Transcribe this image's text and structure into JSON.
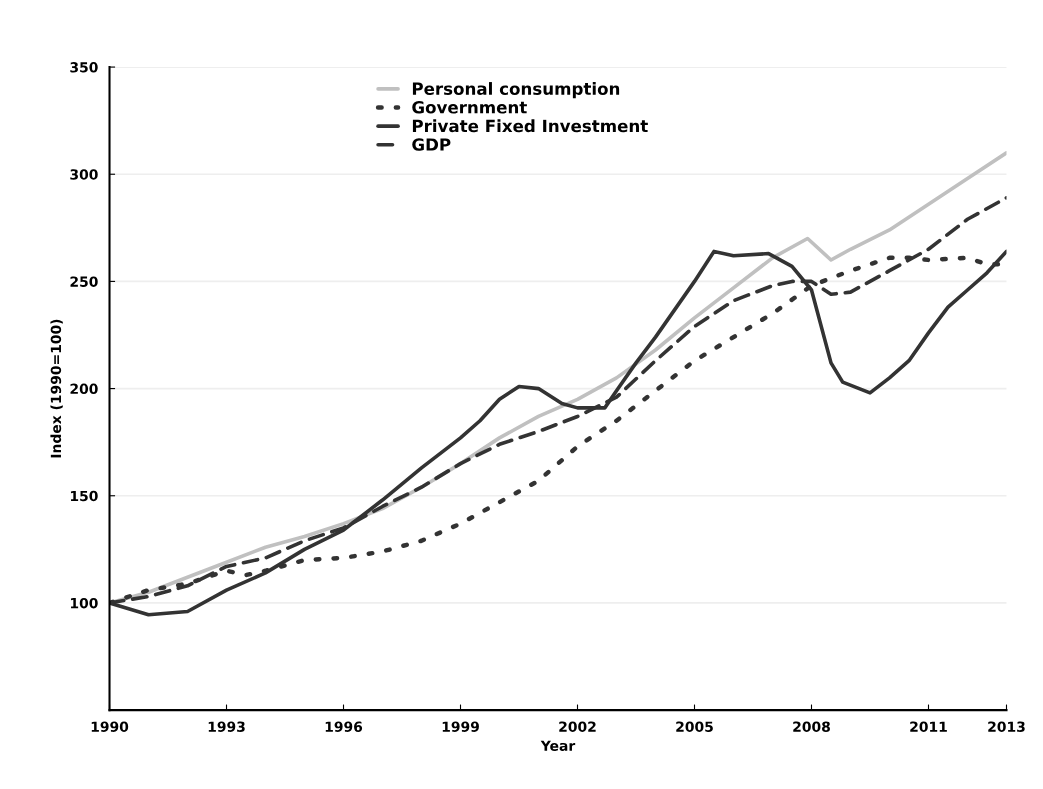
{
  "chart_data": {
    "type": "line",
    "xlabel": "Year",
    "ylabel": "Index (1990=100)",
    "xlim": [
      1990,
      2013
    ],
    "xticks": [
      1990,
      1993,
      1996,
      1999,
      2002,
      2005,
      2008,
      2011,
      2013
    ],
    "ylim": [
      50,
      350
    ],
    "yticks": [
      100,
      150,
      200,
      250,
      300,
      350
    ],
    "grid": "y",
    "legend": "top",
    "marker": "none",
    "series": [
      {
        "name": "Personal consumption",
        "color": "#c0c0c0",
        "line_style": "solid",
        "x": [
          1990,
          1991,
          1992,
          1993,
          1994,
          1995,
          1996,
          1997,
          1998,
          1999,
          2000,
          2001,
          2002,
          2003,
          2004,
          2005,
          2006,
          2007,
          2007.9,
          2008.5,
          2009,
          2010,
          2011,
          2012,
          2013
        ],
        "values": [
          100,
          105,
          112,
          119,
          126,
          131,
          137,
          144,
          154,
          165,
          177,
          187,
          195,
          205,
          218,
          233,
          247,
          261,
          270,
          260,
          265,
          274,
          286,
          298,
          310
        ]
      },
      {
        "name": "Government",
        "color": "#333333",
        "line_style": "dotted",
        "x": [
          1990,
          1991,
          1992,
          1993,
          1993.5,
          1994,
          1995,
          1996,
          1997,
          1998,
          1999,
          2000,
          2001,
          2002,
          2003,
          2004,
          2005,
          2006,
          2007,
          2008,
          2009,
          2010,
          2010.5,
          2011,
          2012,
          2012.5,
          2013
        ],
        "values": [
          100,
          106,
          109,
          115,
          113,
          115,
          120,
          121,
          124,
          129,
          137,
          147,
          157,
          173,
          185,
          199,
          213,
          224,
          235,
          248,
          255,
          261,
          261,
          260,
          261,
          258,
          258
        ]
      },
      {
        "name": "Private Fixed Investment",
        "color": "#333333",
        "line_style": "solid",
        "x": [
          1990,
          1991,
          1992,
          1993,
          1994,
          1995,
          1996,
          1997,
          1998,
          1999,
          1999.5,
          2000,
          2000.5,
          2001,
          2001.6,
          2002,
          2002.7,
          2003,
          2003.5,
          2004,
          2005,
          2005.5,
          2006,
          2006.9,
          2007.5,
          2008,
          2008.5,
          2008.8,
          2009.5,
          2010,
          2010.5,
          2011,
          2011.5,
          2012,
          2012.5,
          2013
        ],
        "values": [
          100,
          94.5,
          96,
          106,
          114,
          125,
          134,
          148,
          163,
          177,
          185,
          195,
          201,
          200,
          193,
          191,
          191,
          199,
          212,
          224,
          250,
          264,
          262,
          263,
          257,
          246,
          212,
          203,
          198,
          205,
          213,
          226,
          238,
          246,
          254,
          264
        ]
      },
      {
        "name": "GDP",
        "color": "#333333",
        "line_style": "dashed",
        "x": [
          1990,
          1991,
          1992,
          1993,
          1994,
          1995,
          1996,
          1997,
          1998,
          1999,
          2000,
          2001,
          2002,
          2003,
          2004,
          2005,
          2006,
          2007,
          2007.5,
          2008,
          2008.5,
          2009,
          2010,
          2011,
          2012,
          2013
        ],
        "values": [
          100,
          103,
          108,
          117,
          121,
          129,
          135,
          145,
          154,
          165,
          174,
          180,
          187,
          196,
          213,
          229,
          241,
          248,
          250,
          250,
          244,
          245,
          255,
          265,
          279,
          289
        ]
      }
    ]
  }
}
